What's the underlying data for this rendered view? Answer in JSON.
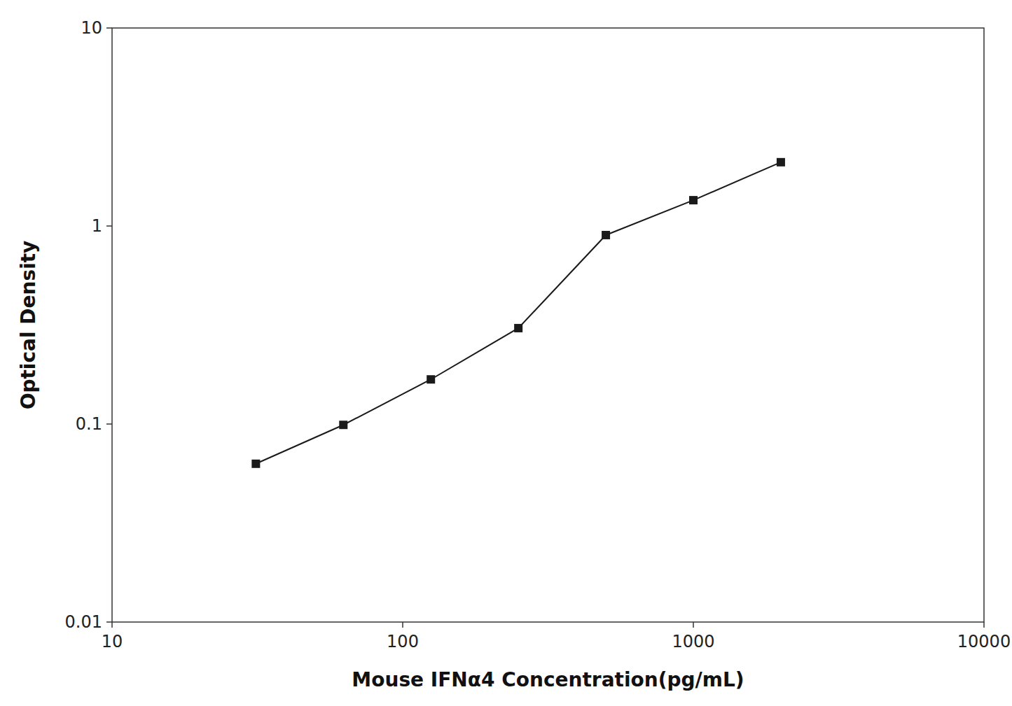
{
  "chart_data": {
    "type": "line",
    "x": [
      31.25,
      62.5,
      125,
      250,
      500,
      1000,
      2000
    ],
    "values": [
      0.063,
      0.099,
      0.168,
      0.305,
      0.9,
      1.35,
      2.1
    ],
    "xlabel": "Mouse IFNα4 Concentration(pg/mL)",
    "ylabel": "Optical Density",
    "xlim": [
      10,
      10000
    ],
    "ylim": [
      0.01,
      10
    ],
    "xticks": [
      10,
      100,
      1000,
      10000
    ],
    "yticks": [
      0.01,
      0.1,
      1,
      10
    ],
    "log": true,
    "grid": false,
    "color": "#1a1a1a",
    "marker": "square"
  }
}
